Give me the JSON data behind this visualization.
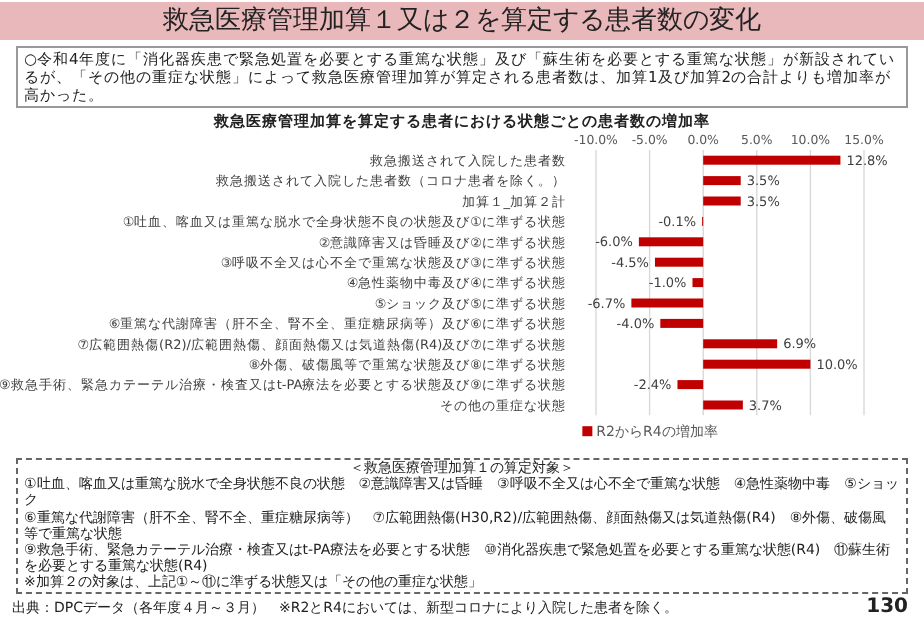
{
  "chart_data": {
    "type": "bar",
    "orientation": "horizontal",
    "title": "救急医療管理加算１又は２を算定する患者数の変化",
    "subtitle": "救急医療管理加算を算定する患者における状態ごとの患者数の増加率",
    "categories": [
      "救急搬送されて入院した患者数",
      "救急搬送されて入院した患者数（コロナ患者を除く。）",
      "加算１_加算２計",
      "①吐血、喀血又は重篤な脱水で全身状態不良の状態及び①に準ずる状態",
      "②意識障害又は昏睡及び②に準ずる状態",
      "③呼吸不全又は心不全で重篤な状態及び③に準ずる状態",
      "④急性薬物中毒及び④に準ずる状態",
      "⑤ショック及び⑤に準ずる状態",
      "⑥重篤な代謝障害（肝不全、腎不全、重症糖尿病等）及び⑥に準ずる状態",
      "⑦広範囲熱傷(R2)/広範囲熱傷、顔面熱傷又は気道熱傷(R4)及び⑦に準ずる状態",
      "⑧外傷、破傷風等で重篤な状態及び⑧に準ずる状態",
      "⑨救急手術、緊急カテーテル治療・検査又はt-PA療法を必要とする状態及び⑨に準ずる状態",
      "その他の重症な状態"
    ],
    "series": [
      {
        "name": "R2からR4の増加率",
        "color": "#c00000",
        "values": [
          12.8,
          3.5,
          3.5,
          -0.1,
          -6.0,
          -4.5,
          -1.0,
          -6.7,
          -4.0,
          6.9,
          10.0,
          -2.4,
          3.7
        ],
        "value_labels": [
          "12.8%",
          "3.5%",
          "3.5%",
          "-0.1%",
          "-6.0%",
          "-4.5%",
          "-1.0%",
          "-6.7%",
          "-4.0%",
          "6.9%",
          "10.0%",
          "-2.4%",
          "3.7%"
        ]
      }
    ],
    "xlim": [
      -10,
      15
    ],
    "xticks": [
      {
        "value": -10,
        "label": "-10.0%"
      },
      {
        "value": -5,
        "label": "-5.0%"
      },
      {
        "value": 0,
        "label": "0.0%"
      },
      {
        "value": 5,
        "label": "5.0%"
      },
      {
        "value": 10,
        "label": "10.0%"
      },
      {
        "value": 15,
        "label": "15.0%"
      }
    ],
    "grid": "x",
    "legend": "bottom",
    "annotations": [
      "○令和4年度に「消化器疾患で緊急処置を必要とする重篤な状態」及び「蘇生術を必要とする重篤な状態」が新設されているが、「その他の重症な状態」によって救急医療管理加算が算定される患者数は、加算1及び加算2の合計よりも増加率が高かった。",
      "＜救急医療管理加算１の算定対象＞\n①吐血、喀血又は重篤な脱水で全身状態不良の状態　②意識障害又は昏睡　③呼吸不全又は心不全で重篤な状態　④急性薬物中毒　⑤ショック\n⑥重篤な代謝障害（肝不全、腎不全、重症糖尿病等）　⑦広範囲熱傷(H30,R2)/広範囲熱傷、顔面熱傷又は気道熱傷(R4)　⑧外傷、破傷風等で重篤な状態\n⑨救急手術、緊急カテーテル治療・検査又はt-PA療法を必要とする状態　⑩消化器疾患で緊急処置を必要とする重篤な状態(R4)　⑪蘇生術を必要とする重篤な状態(R4)\n※加算２の対象は、上記①～⑪に準ずる状態又は「その他の重症な状態」",
      "出典：DPCデータ（各年度４月～３月）　※R2とR4においては、新型コロナにより入院した患者を除く。",
      "130"
    ]
  }
}
